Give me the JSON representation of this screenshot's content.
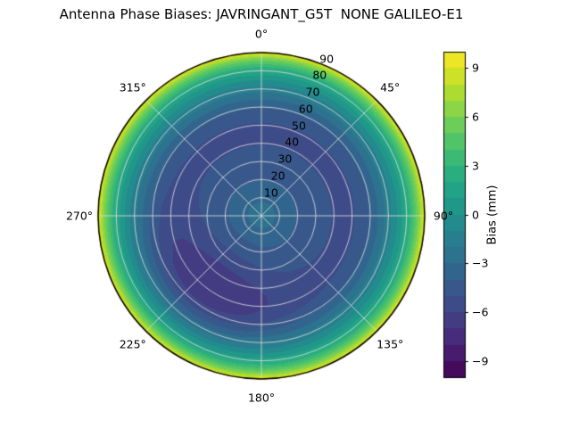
{
  "chart_data": {
    "type": "polar_contour",
    "title": "Antenna Phase Biases: JAVRINGANT_G5T  NONE GALILEO-E1",
    "colormap": "viridis",
    "colormap_stops": [
      {
        "t": 0.0,
        "color": "#440154"
      },
      {
        "t": 0.1,
        "color": "#482475"
      },
      {
        "t": 0.2,
        "color": "#414487"
      },
      {
        "t": 0.3,
        "color": "#355f8d"
      },
      {
        "t": 0.4,
        "color": "#2a788e"
      },
      {
        "t": 0.5,
        "color": "#21918c"
      },
      {
        "t": 0.6,
        "color": "#22a884"
      },
      {
        "t": 0.7,
        "color": "#44bf70"
      },
      {
        "t": 0.8,
        "color": "#7ad151"
      },
      {
        "t": 0.9,
        "color": "#bddf26"
      },
      {
        "t": 1.0,
        "color": "#fde725"
      }
    ],
    "value_range_mm": [
      -10,
      10
    ],
    "contour_level_step_mm": 1,
    "r_max": 90,
    "theta_zero_location": "N",
    "theta_direction": "clockwise",
    "radial_label_angle_deg": 22.5,
    "theta_ticks": [
      {
        "angle_deg": 0,
        "label": "0°"
      },
      {
        "angle_deg": 45,
        "label": "45°"
      },
      {
        "angle_deg": 90,
        "label": "90°"
      },
      {
        "angle_deg": 135,
        "label": "135°"
      },
      {
        "angle_deg": 180,
        "label": "180°"
      },
      {
        "angle_deg": 225,
        "label": "225°"
      },
      {
        "angle_deg": 270,
        "label": "270°"
      },
      {
        "angle_deg": 315,
        "label": "315°"
      }
    ],
    "radial_ticks": [
      {
        "r": 10,
        "label": "10"
      },
      {
        "r": 20,
        "label": "20"
      },
      {
        "r": 30,
        "label": "30"
      },
      {
        "r": 40,
        "label": "40"
      },
      {
        "r": 50,
        "label": "50"
      },
      {
        "r": 60,
        "label": "60"
      },
      {
        "r": 70,
        "label": "70"
      },
      {
        "r": 80,
        "label": "80"
      },
      {
        "r": 90,
        "label": "90"
      }
    ],
    "radial_profile_mm": [
      {
        "zenith_deg": 0,
        "bias_mm": -2.5
      },
      {
        "zenith_deg": 5,
        "bias_mm": -2.8
      },
      {
        "zenith_deg": 10,
        "bias_mm": -3.2
      },
      {
        "zenith_deg": 15,
        "bias_mm": -3.7
      },
      {
        "zenith_deg": 20,
        "bias_mm": -4.05
      },
      {
        "zenith_deg": 25,
        "bias_mm": -4.35
      },
      {
        "zenith_deg": 30,
        "bias_mm": -4.6
      },
      {
        "zenith_deg": 35,
        "bias_mm": -4.85
      },
      {
        "zenith_deg": 40,
        "bias_mm": -5.05
      },
      {
        "zenith_deg": 45,
        "bias_mm": -5.15
      },
      {
        "zenith_deg": 50,
        "bias_mm": -5.1
      },
      {
        "zenith_deg": 55,
        "bias_mm": -4.7
      },
      {
        "zenith_deg": 60,
        "bias_mm": -3.9
      },
      {
        "zenith_deg": 65,
        "bias_mm": -2.8
      },
      {
        "zenith_deg": 70,
        "bias_mm": -1.4
      },
      {
        "zenith_deg": 73,
        "bias_mm": -0.6
      },
      {
        "zenith_deg": 76,
        "bias_mm": 0.4
      },
      {
        "zenith_deg": 79,
        "bias_mm": 1.6
      },
      {
        "zenith_deg": 82,
        "bias_mm": 3.0
      },
      {
        "zenith_deg": 85,
        "bias_mm": 4.9
      },
      {
        "zenith_deg": 87,
        "bias_mm": 6.4
      },
      {
        "zenith_deg": 89,
        "bias_mm": 8.4
      },
      {
        "zenith_deg": 90,
        "bias_mm": 9.6
      }
    ],
    "anomaly": {
      "azimuth_deg": 215,
      "zenith_deg": 52,
      "amplitude_mm": -1.9,
      "sigma_azimuth_deg": 32,
      "sigma_zenith_deg": 18
    },
    "colorbar": {
      "label": "Bias (mm)",
      "range": [
        -10,
        10
      ],
      "ticks": [
        {
          "value": 9,
          "label": "9"
        },
        {
          "value": 6,
          "label": "6"
        },
        {
          "value": 3,
          "label": "3"
        },
        {
          "value": 0,
          "label": "0"
        },
        {
          "value": -3,
          "label": "−3"
        },
        {
          "value": -6,
          "label": "−6"
        },
        {
          "value": -9,
          "label": "−9"
        }
      ]
    },
    "colors": {
      "grid": "#dcdcdc",
      "outline": "#000000",
      "background": "#ffffff"
    }
  }
}
